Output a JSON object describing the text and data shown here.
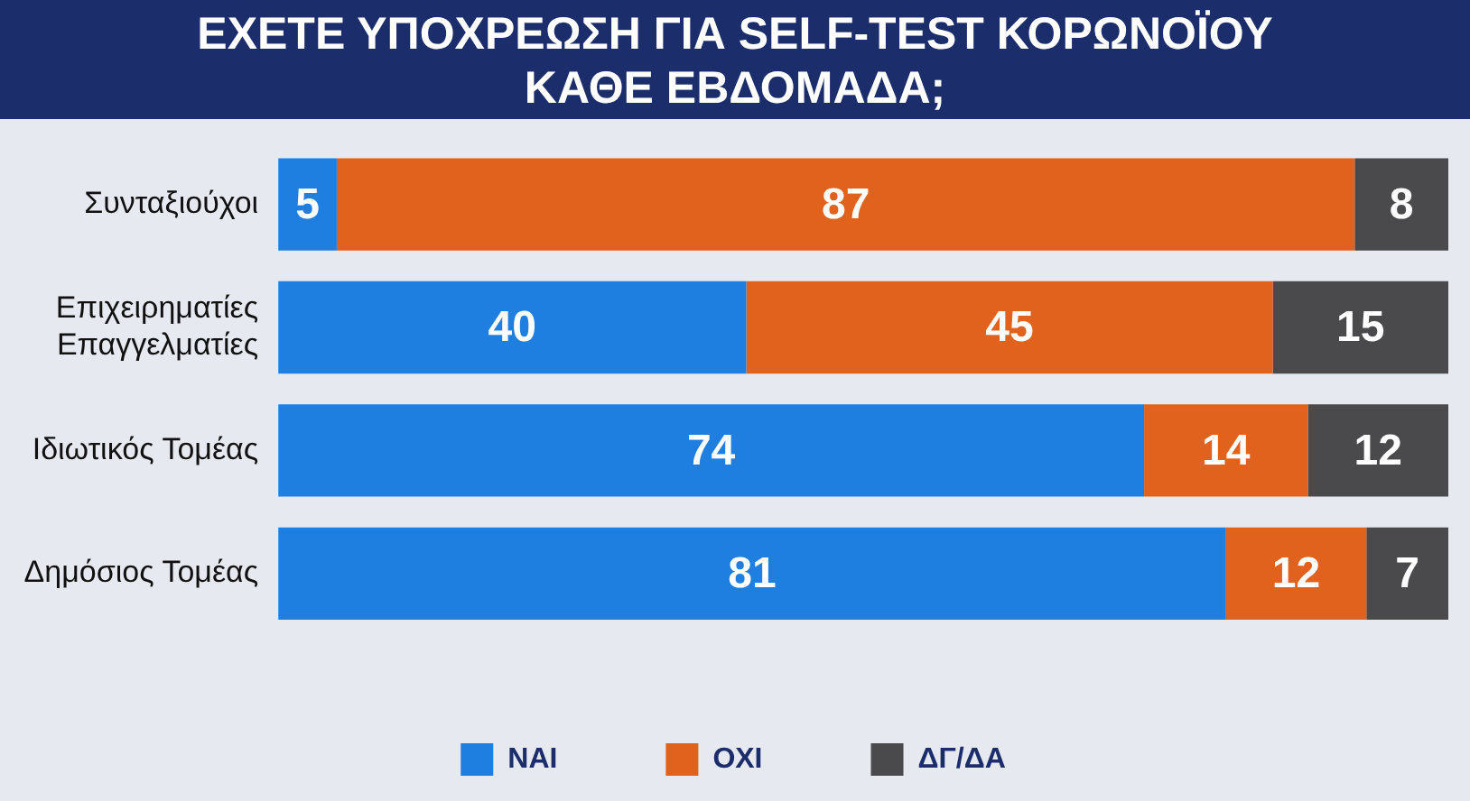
{
  "chart_data": {
    "type": "bar",
    "orientation": "horizontal",
    "stacked": true,
    "title": "ΕΧΕΤΕ ΥΠΟΧΡΕΩΣΗ ΓΙΑ SELF-TEST ΚΟΡΩΝΟΪΟΥ\nΚΑΘΕ ΕΒΔΟΜΑΔΑ;",
    "categories": [
      "Συνταξιούχοι",
      "Επιχειρηματίες\nΕπαγγελματίες",
      "Ιδιωτικός Τομέας",
      "Δημόσιος Τομέας"
    ],
    "series": [
      {
        "name": "ΝΑΙ",
        "color": "#1f7fe0",
        "values": [
          5,
          40,
          74,
          81
        ]
      },
      {
        "name": "ΟΧΙ",
        "color": "#e0621c",
        "values": [
          87,
          45,
          14,
          12
        ]
      },
      {
        "name": "ΔΓ/ΔΑ",
        "color": "#4a4a4c",
        "values": [
          8,
          15,
          12,
          7
        ]
      }
    ],
    "data_labels": true,
    "legend": "bottom",
    "tick_labels": "y"
  }
}
